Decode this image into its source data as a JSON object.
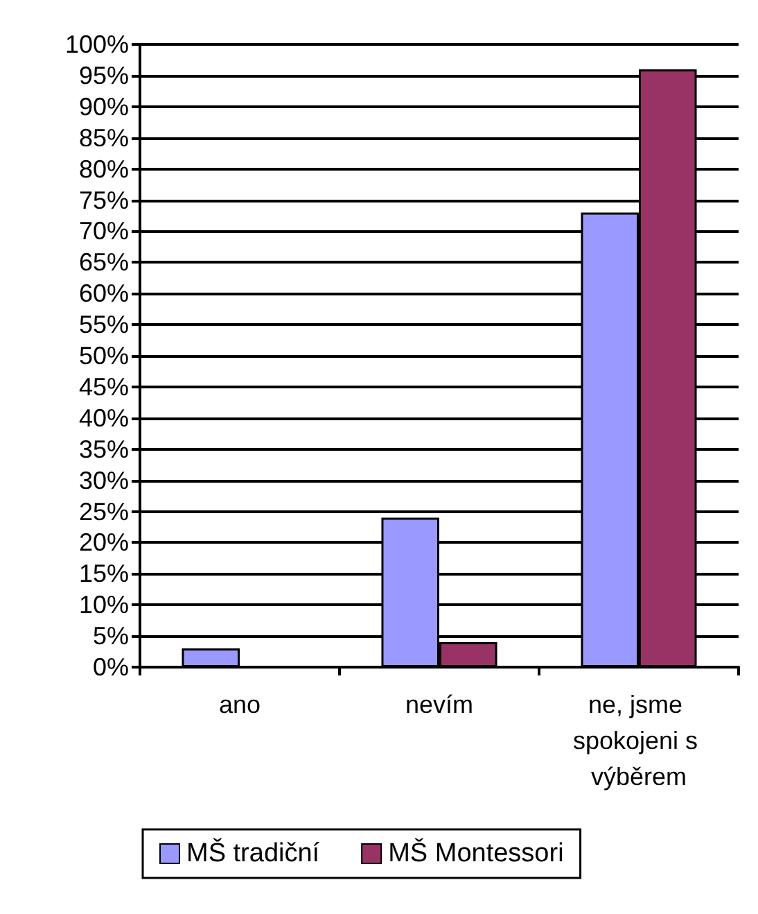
{
  "chart_data": {
    "type": "bar",
    "categories": [
      "ano",
      "nevím",
      "ne, jsme spokojeni s výběrem"
    ],
    "series": [
      {
        "name": "MŠ tradiční",
        "color": "#9999ff",
        "values": [
          3,
          24,
          73
        ]
      },
      {
        "name": "MŠ Montessori",
        "color": "#993366",
        "values": [
          null,
          4,
          96
        ]
      }
    ],
    "ylim": [
      0,
      100
    ],
    "yticks": [
      {
        "value": 0,
        "label": "0%"
      },
      {
        "value": 5,
        "label": "5%"
      },
      {
        "value": 10,
        "label": "10%"
      },
      {
        "value": 15,
        "label": "15%"
      },
      {
        "value": 20,
        "label": "20%"
      },
      {
        "value": 25,
        "label": "25%"
      },
      {
        "value": 30,
        "label": "30%"
      },
      {
        "value": 35,
        "label": "35%"
      },
      {
        "value": 40,
        "label": "40%"
      },
      {
        "value": 45,
        "label": "45%"
      },
      {
        "value": 50,
        "label": "50%"
      },
      {
        "value": 55,
        "label": "55%"
      },
      {
        "value": 60,
        "label": "60%"
      },
      {
        "value": 65,
        "label": "65%"
      },
      {
        "value": 70,
        "label": "70%"
      },
      {
        "value": 75,
        "label": "75%"
      },
      {
        "value": 80,
        "label": "80%"
      },
      {
        "value": 85,
        "label": "85%"
      },
      {
        "value": 90,
        "label": "90%"
      },
      {
        "value": 95,
        "label": "95%"
      },
      {
        "value": 100,
        "label": "100%"
      }
    ],
    "grid": "y",
    "legend": "bottom"
  }
}
